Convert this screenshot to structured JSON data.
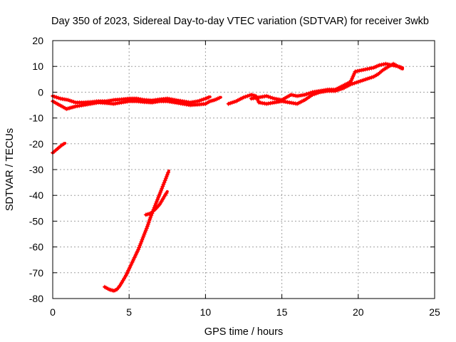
{
  "chart_data": {
    "type": "scatter",
    "title": "Day 350 of 2023, Sidereal Day-to-day VTEC variation (SDTVAR) for receiver 3wkb",
    "xlabel": "GPS time / hours",
    "ylabel": "SDTVAR / TECUs",
    "xlim": [
      0,
      25
    ],
    "ylim": [
      -80,
      20
    ],
    "xticks": [
      "0",
      "5",
      "10",
      "15",
      "20",
      "25"
    ],
    "yticks": [
      "20",
      "10",
      "0",
      "-10",
      "-20",
      "-30",
      "-40",
      "-50",
      "-60",
      "-70",
      "-80"
    ],
    "grid": true,
    "marker_color": "#ff0000",
    "marker": "plus",
    "series": [
      {
        "points": [
          [
            0.0,
            -3.5
          ],
          [
            0.3,
            -4.5
          ],
          [
            0.6,
            -5.5
          ],
          [
            0.9,
            -6.5
          ],
          [
            1.2,
            -6.0
          ],
          [
            1.5,
            -5.5
          ],
          [
            2.0,
            -5.0
          ],
          [
            2.5,
            -4.5
          ],
          [
            3.0,
            -4.0
          ],
          [
            3.5,
            -4.2
          ],
          [
            4.0,
            -4.5
          ],
          [
            4.5,
            -4.0
          ],
          [
            5.0,
            -3.5
          ],
          [
            5.5,
            -3.5
          ],
          [
            6.0,
            -3.8
          ],
          [
            6.5,
            -4.0
          ],
          [
            7.0,
            -3.5
          ],
          [
            7.5,
            -3.5
          ],
          [
            8.0,
            -4.0
          ],
          [
            8.5,
            -4.5
          ],
          [
            9.0,
            -5.0
          ],
          [
            9.5,
            -4.8
          ],
          [
            10.0,
            -4.5
          ],
          [
            10.3,
            -3.5
          ],
          [
            10.6,
            -3.0
          ],
          [
            11.0,
            -2.0
          ]
        ]
      },
      {
        "points": [
          [
            0.0,
            -1.5
          ],
          [
            0.5,
            -2.5
          ],
          [
            1.0,
            -3.0
          ],
          [
            1.5,
            -4.0
          ],
          [
            2.0,
            -4.0
          ],
          [
            2.5,
            -3.8
          ],
          [
            3.0,
            -3.5
          ],
          [
            3.5,
            -3.5
          ],
          [
            4.0,
            -3.0
          ],
          [
            4.5,
            -2.8
          ],
          [
            5.0,
            -2.5
          ],
          [
            5.5,
            -2.5
          ],
          [
            6.0,
            -3.0
          ],
          [
            6.5,
            -3.2
          ],
          [
            7.0,
            -2.8
          ],
          [
            7.5,
            -2.5
          ],
          [
            8.0,
            -3.0
          ],
          [
            8.5,
            -3.5
          ],
          [
            9.0,
            -4.0
          ],
          [
            9.5,
            -3.5
          ],
          [
            10.0,
            -2.5
          ],
          [
            10.3,
            -1.8
          ]
        ]
      },
      {
        "points": [
          [
            11.5,
            -4.5
          ],
          [
            12.0,
            -3.5
          ],
          [
            12.5,
            -2.0
          ],
          [
            13.0,
            -1.0
          ],
          [
            13.3,
            -1.5
          ],
          [
            13.5,
            -4.0
          ],
          [
            14.0,
            -4.5
          ],
          [
            14.5,
            -4.0
          ],
          [
            15.0,
            -3.5
          ],
          [
            15.5,
            -4.0
          ],
          [
            16.0,
            -4.5
          ],
          [
            16.5,
            -3.0
          ],
          [
            17.0,
            -1.0
          ],
          [
            17.5,
            0.0
          ],
          [
            18.0,
            0.5
          ],
          [
            18.5,
            0.5
          ],
          [
            19.0,
            1.5
          ],
          [
            19.5,
            3.0
          ],
          [
            20.0,
            4.0
          ],
          [
            20.5,
            5.0
          ],
          [
            21.0,
            6.0
          ],
          [
            21.3,
            7.0
          ],
          [
            21.6,
            8.5
          ],
          [
            22.0,
            10.0
          ],
          [
            22.3,
            11.0
          ],
          [
            22.6,
            10.0
          ],
          [
            22.9,
            9.5
          ]
        ]
      },
      {
        "points": [
          [
            13.0,
            -2.5
          ],
          [
            13.5,
            -2.0
          ],
          [
            14.0,
            -1.5
          ],
          [
            14.5,
            -2.5
          ],
          [
            15.0,
            -3.0
          ],
          [
            15.3,
            -2.0
          ],
          [
            15.6,
            -1.0
          ],
          [
            16.0,
            -1.5
          ],
          [
            16.5,
            -1.0
          ],
          [
            17.0,
            0.0
          ],
          [
            17.5,
            0.5
          ],
          [
            18.0,
            1.0
          ],
          [
            18.5,
            1.0
          ],
          [
            19.0,
            2.5
          ],
          [
            19.5,
            4.0
          ],
          [
            19.8,
            8.0
          ],
          [
            20.2,
            8.5
          ],
          [
            20.6,
            9.0
          ],
          [
            21.0,
            9.5
          ],
          [
            21.4,
            10.5
          ],
          [
            21.8,
            11.0
          ],
          [
            22.2,
            10.5
          ],
          [
            22.6,
            10.0
          ],
          [
            22.9,
            9.0
          ]
        ]
      },
      {
        "points": [
          [
            0.0,
            -23.5
          ],
          [
            0.2,
            -22.5
          ],
          [
            0.4,
            -21.5
          ],
          [
            0.6,
            -20.5
          ],
          [
            0.8,
            -19.8
          ]
        ]
      },
      {
        "points": [
          [
            3.4,
            -75.5
          ],
          [
            3.7,
            -76.5
          ],
          [
            4.0,
            -77.0
          ],
          [
            4.2,
            -76.5
          ],
          [
            4.4,
            -75.0
          ],
          [
            4.6,
            -73.0
          ],
          [
            4.8,
            -71.0
          ],
          [
            5.0,
            -68.5
          ],
          [
            5.2,
            -66.0
          ],
          [
            5.4,
            -63.5
          ],
          [
            5.6,
            -61.0
          ],
          [
            5.8,
            -58.0
          ],
          [
            6.0,
            -55.0
          ],
          [
            6.2,
            -52.0
          ],
          [
            6.4,
            -48.5
          ],
          [
            6.6,
            -45.5
          ],
          [
            6.8,
            -42.5
          ],
          [
            7.0,
            -39.5
          ],
          [
            7.2,
            -36.5
          ],
          [
            7.4,
            -33.5
          ],
          [
            7.6,
            -30.5
          ]
        ]
      },
      {
        "points": [
          [
            6.1,
            -47.5
          ],
          [
            6.4,
            -47.0
          ],
          [
            6.7,
            -45.5
          ],
          [
            7.0,
            -43.5
          ],
          [
            7.3,
            -40.5
          ],
          [
            7.5,
            -38.5
          ]
        ]
      }
    ]
  }
}
